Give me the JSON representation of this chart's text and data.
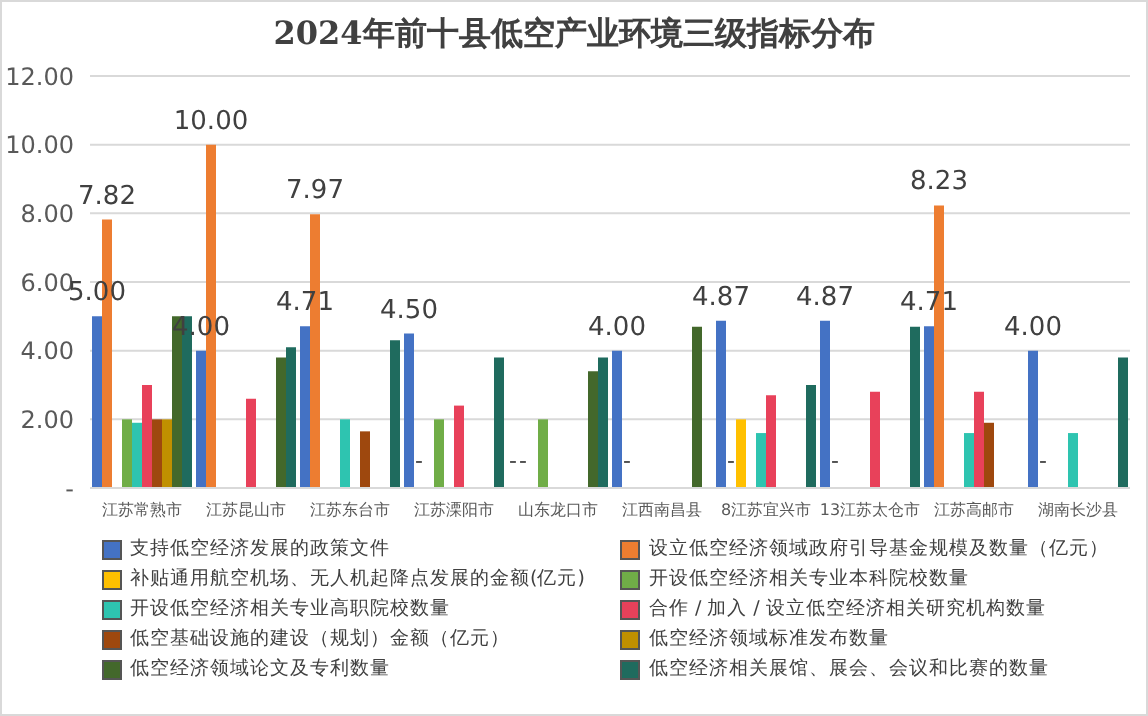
{
  "chart_data": {
    "type": "bar",
    "title": "2024年前十县低空产业环境三级指标分布",
    "categories": [
      "江苏常熟市",
      "江苏昆山市",
      "江苏东台市",
      "江苏溧阳市",
      "山东龙口市",
      "江西南昌县",
      "8江苏宜兴市",
      "13江苏太仓市",
      "江苏高邮市",
      "湖南长沙县"
    ],
    "series": [
      {
        "name": "支持低空经济发展的政策文件",
        "color": "#4472c4",
        "values": [
          5.0,
          4.0,
          4.71,
          4.5,
          null,
          4.0,
          4.87,
          4.87,
          4.71,
          4.0
        ],
        "value_labels": [
          "5.00",
          "4.00",
          "4.71",
          "4.50",
          "-",
          "4.00",
          "4.87",
          "4.87",
          "4.71",
          "4.00"
        ]
      },
      {
        "name": "设立低空经济领域政府引导基金规模及数量（亿元）",
        "color": "#ed7d31",
        "values": [
          7.82,
          10.0,
          7.97,
          null,
          null,
          null,
          null,
          null,
          8.23,
          null
        ],
        "value_labels": [
          "7.82",
          "10.00",
          "7.97",
          "-",
          "-",
          "-",
          "-",
          "-",
          "8.23",
          "-"
        ]
      },
      {
        "name": "补贴通用航空机场、无人机起降点发展的金额(亿元)",
        "color": "#ffc000",
        "values": [
          null,
          null,
          null,
          null,
          null,
          null,
          2.0,
          null,
          null,
          null
        ]
      },
      {
        "name": "开设低空经济相关专业本科院校数量",
        "color": "#70ad47",
        "values": [
          2.0,
          null,
          null,
          2.0,
          2.0,
          null,
          null,
          null,
          null,
          null
        ]
      },
      {
        "name": "开设低空经济相关专业高职院校数量",
        "color": "#2ec4b0",
        "values": [
          1.9,
          null,
          2.0,
          null,
          null,
          null,
          1.6,
          null,
          1.6,
          1.6
        ]
      },
      {
        "name": "合作 / 加入 / 设立低空经济相关研究机构数量",
        "color": "#e8415a",
        "values": [
          3.0,
          2.6,
          null,
          2.4,
          null,
          null,
          2.7,
          2.8,
          2.8,
          null
        ]
      },
      {
        "name": "低空基础设施的建设（规划）金额（亿元）",
        "color": "#9e480e",
        "values": [
          2.0,
          null,
          1.65,
          null,
          null,
          null,
          null,
          null,
          1.9,
          null
        ]
      },
      {
        "name": "低空经济领域标准发布数量",
        "color": "#c09000",
        "values": [
          2.0,
          null,
          null,
          null,
          null,
          null,
          null,
          null,
          null,
          null
        ]
      },
      {
        "name": "低空经济领域论文及专利数量",
        "color": "#43682b",
        "values": [
          5.0,
          3.8,
          null,
          null,
          3.4,
          4.7,
          null,
          null,
          null,
          null
        ]
      },
      {
        "name": "低空经济相关展馆、展会、会议和比赛的数量",
        "color": "#1f6b5e",
        "values": [
          5.0,
          4.1,
          4.3,
          3.8,
          3.8,
          null,
          3.0,
          4.7,
          null,
          3.8
        ]
      }
    ],
    "ylim": [
      0,
      12
    ],
    "yticks": [
      {
        "value": 0,
        "label": "-"
      },
      {
        "value": 2,
        "label": "2.00"
      },
      {
        "value": 4,
        "label": "4.00"
      },
      {
        "value": 6,
        "label": "6.00"
      },
      {
        "value": 8,
        "label": "8.00"
      },
      {
        "value": 10,
        "label": "10.00"
      },
      {
        "value": 12,
        "label": "12.00"
      }
    ],
    "grid": "y",
    "legend": "bottom"
  }
}
